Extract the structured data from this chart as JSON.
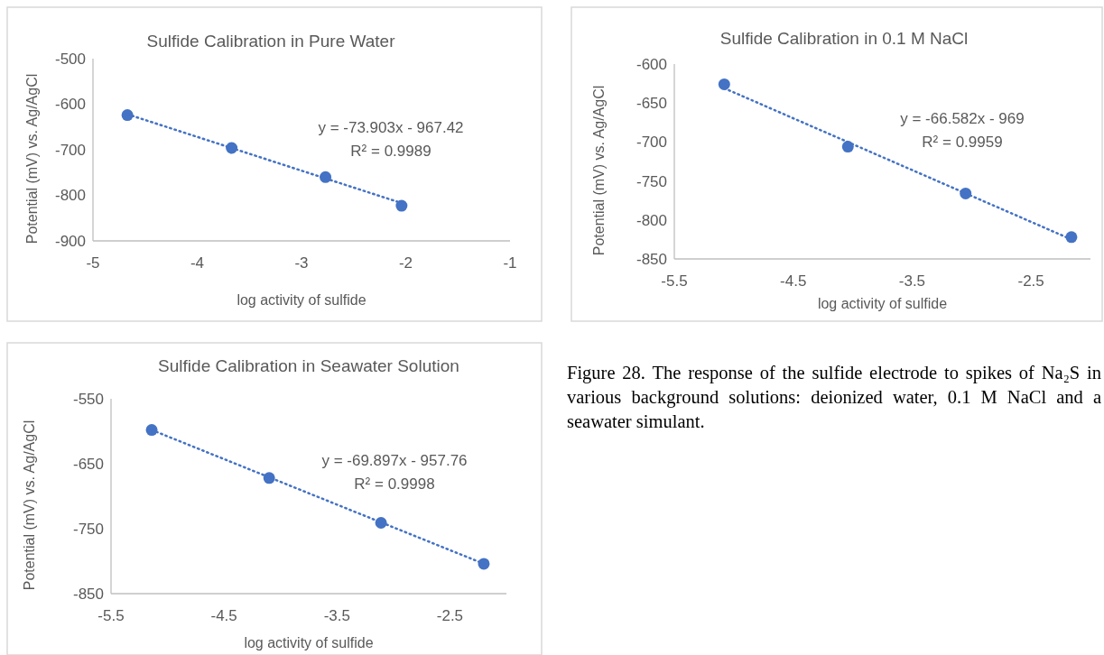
{
  "chart_data": [
    {
      "type": "scatter",
      "title": "Sulfide Calibration in Pure Water",
      "xlabel": "log activity of sulfide",
      "ylabel": "Potential (mV) vs. Ag/AgCl",
      "xlim": [
        -5,
        -1
      ],
      "xticks": [
        -5,
        -4,
        -3,
        -2,
        -1
      ],
      "ylim": [
        -900,
        -500
      ],
      "yticks": [
        -900,
        -800,
        -700,
        -600,
        -500
      ],
      "grid": false,
      "annotations": [
        "y = -73.903x - 967.42",
        "R² = 0.9989"
      ],
      "series": [
        {
          "type": "scatter",
          "marker": "circle",
          "color": "#4472c4",
          "x": [
            -4.67,
            -3.67,
            -2.77,
            -2.04
          ],
          "values": [
            -624,
            -696,
            -760,
            -823
          ]
        },
        {
          "type": "line",
          "line_style": "dotted",
          "color": "#4472c4",
          "x": [
            -4.67,
            -2.04
          ],
          "values": [
            -622,
            -817
          ]
        }
      ]
    },
    {
      "type": "scatter",
      "title": "Sulfide Calibration in 0.1 M NaCl",
      "xlabel": "log activity of sulfide",
      "ylabel": "Potential (mV) vs. Ag/AgCl",
      "xlim": [
        -5.5,
        -2
      ],
      "xticks": [
        -5.5,
        -4.5,
        -3.5,
        -2.5
      ],
      "ylim": [
        -850,
        -600
      ],
      "yticks": [
        -850,
        -800,
        -750,
        -700,
        -650,
        -600
      ],
      "grid": false,
      "annotations": [
        "y = -66.582x - 969",
        "R² = 0.9959"
      ],
      "series": [
        {
          "type": "scatter",
          "marker": "circle",
          "color": "#4472c4",
          "x": [
            -5.08,
            -4.04,
            -3.05,
            -2.16
          ],
          "values": [
            -626,
            -706,
            -766,
            -822
          ]
        },
        {
          "type": "line",
          "line_style": "dotted",
          "color": "#4472c4",
          "x": [
            -5.08,
            -2.16
          ],
          "values": [
            -631,
            -825
          ]
        }
      ]
    },
    {
      "type": "scatter",
      "title": "Sulfide Calibration in Seawater Solution",
      "xlabel": "log activity of sulfide",
      "ylabel": "Potential (mV) vs. Ag/AgCl",
      "xlim": [
        -5.5,
        -2
      ],
      "xticks": [
        -5.5,
        -4.5,
        -3.5,
        -2.5
      ],
      "ylim": [
        -850,
        -550
      ],
      "yticks": [
        -850,
        -750,
        -650,
        -550
      ],
      "grid": false,
      "annotations": [
        "y = -69.897x - 957.76",
        "R² = 0.9998"
      ],
      "series": [
        {
          "type": "scatter",
          "marker": "circle",
          "color": "#4472c4",
          "x": [
            -5.14,
            -4.1,
            -3.11,
            -2.2
          ],
          "values": [
            -598,
            -672,
            -741,
            -804
          ]
        },
        {
          "type": "line",
          "line_style": "dotted",
          "color": "#4472c4",
          "x": [
            -5.14,
            -2.2
          ],
          "values": [
            -598,
            -804
          ]
        }
      ]
    },
    {
      "type": "other",
      "annotations": [
        "Figure 28. The response of the sulfide electrode to spikes of Na₂S in various background solutions: deionized water, 0.1 M NaCl and a seawater simulant."
      ]
    }
  ]
}
